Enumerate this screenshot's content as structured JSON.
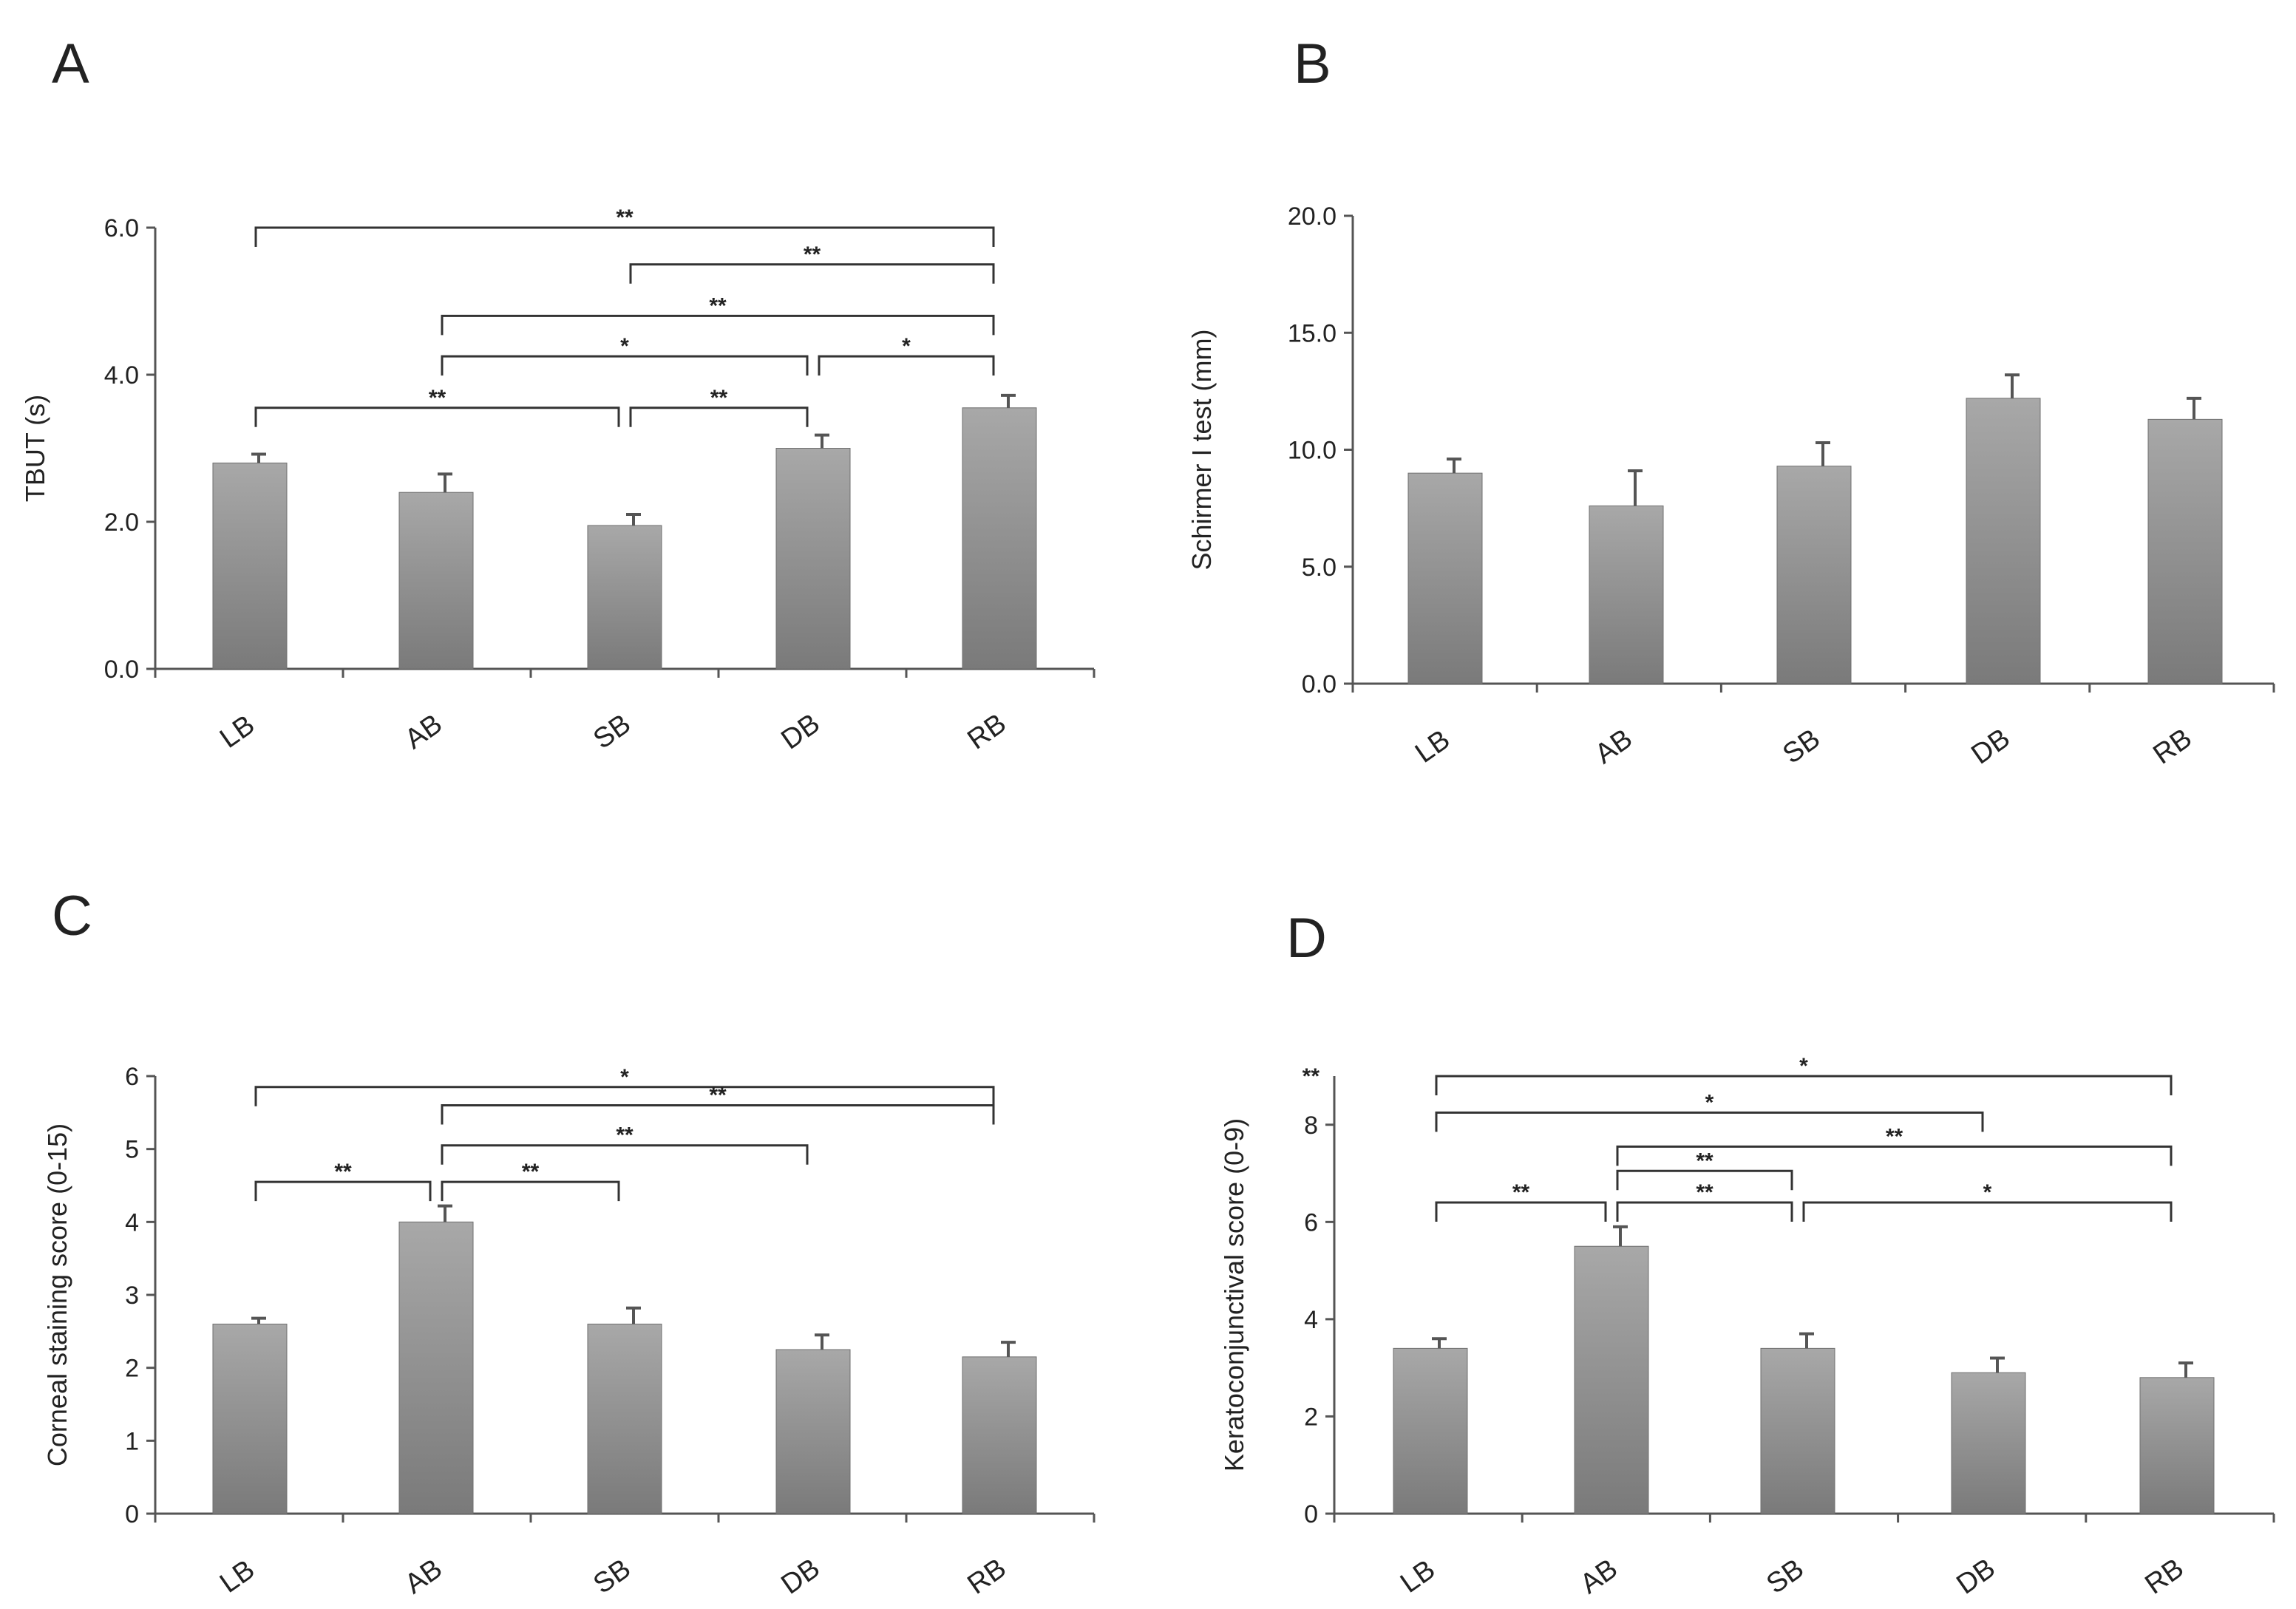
{
  "figure": {
    "bar_color_top": "#a8a8a8",
    "bar_color_bottom": "#7a7a7a",
    "bracket_color": "#333333",
    "axis_color": "#555555"
  },
  "chart_data": [
    {
      "panel": "A",
      "type": "bar",
      "categories": [
        "LB",
        "AB",
        "SB",
        "DB",
        "RB"
      ],
      "values": [
        2.8,
        2.4,
        1.95,
        3.0,
        3.55
      ],
      "errors": [
        0.12,
        0.25,
        0.15,
        0.18,
        0.17
      ],
      "ylabel": "TBUT (s)",
      "ylim": [
        0,
        6
      ],
      "yticks": [
        0,
        2,
        4,
        6
      ],
      "ytick_labels": [
        "0.0",
        "2.0",
        "4.0",
        "6.0"
      ],
      "significance": [
        {
          "from": "LB",
          "to": "RB",
          "label": "**",
          "level": 6.0
        },
        {
          "from": "SB",
          "to": "RB",
          "label": "**",
          "level": 5.5
        },
        {
          "from": "AB",
          "to": "RB",
          "label": "**",
          "level": 4.8
        },
        {
          "from": "AB",
          "to": "DB",
          "label": "*",
          "level": 4.25
        },
        {
          "from": "DB",
          "to": "RB",
          "label": "*",
          "level": 4.25
        },
        {
          "from": "LB",
          "to": "SB",
          "label": "**",
          "level": 3.55
        },
        {
          "from": "SB",
          "to": "DB",
          "label": "**",
          "level": 3.55
        }
      ]
    },
    {
      "panel": "B",
      "type": "bar",
      "categories": [
        "LB",
        "AB",
        "SB",
        "DB",
        "RB"
      ],
      "values": [
        9.0,
        7.6,
        9.3,
        12.2,
        11.3
      ],
      "errors": [
        0.6,
        1.5,
        1.0,
        1.0,
        0.9
      ],
      "ylabel": "Schirmer I test (mm)",
      "ylim": [
        0,
        20
      ],
      "yticks": [
        0,
        5,
        10,
        15,
        20
      ],
      "ytick_labels": [
        "0.0",
        "5.0",
        "10.0",
        "15.0",
        "20.0"
      ],
      "significance": []
    },
    {
      "panel": "C",
      "type": "bar",
      "categories": [
        "LB",
        "AB",
        "SB",
        "DB",
        "RB"
      ],
      "values": [
        2.6,
        4.0,
        2.6,
        2.25,
        2.15
      ],
      "errors": [
        0.08,
        0.22,
        0.22,
        0.2,
        0.2
      ],
      "ylabel": "Corneal staining score (0-15)",
      "ylim": [
        0,
        6
      ],
      "yticks": [
        0,
        1,
        2,
        3,
        4,
        5,
        6
      ],
      "ytick_labels": [
        "0",
        "1",
        "2",
        "3",
        "4",
        "5",
        "6"
      ],
      "significance": [
        {
          "from": "LB",
          "to": "RB",
          "label": "*",
          "level": 5.85
        },
        {
          "from": "AB",
          "to": "RB",
          "label": "**",
          "level": 5.6
        },
        {
          "from": "AB",
          "to": "DB",
          "label": "**",
          "level": 5.05
        },
        {
          "from": "LB",
          "to": "AB",
          "label": "**",
          "level": 4.55
        },
        {
          "from": "AB",
          "to": "SB",
          "label": "**",
          "level": 4.55
        }
      ]
    },
    {
      "panel": "D",
      "type": "bar",
      "categories": [
        "LB",
        "AB",
        "SB",
        "DB",
        "RB"
      ],
      "values": [
        3.4,
        5.5,
        3.4,
        2.9,
        2.8
      ],
      "errors": [
        0.2,
        0.4,
        0.3,
        0.3,
        0.3
      ],
      "ylabel": "Keratoconjunctival score (0-9)",
      "ylim": [
        0,
        9
      ],
      "yticks": [
        0,
        2,
        4,
        6,
        8
      ],
      "ytick_labels": [
        "0",
        "2",
        "4",
        "6",
        "8"
      ],
      "corner_annotation": "**",
      "significance": [
        {
          "from": "LB",
          "to": "RB",
          "label": "*",
          "level": 9.0
        },
        {
          "from": "LB",
          "to": "DB",
          "label": "*",
          "level": 8.25
        },
        {
          "from": "AB",
          "to": "RB",
          "label": "**",
          "level": 7.55
        },
        {
          "from": "AB",
          "to": "SB",
          "label": "**",
          "level": 7.05
        },
        {
          "from": "LB",
          "to": "AB",
          "label": "**",
          "level": 6.4
        },
        {
          "from": "AB",
          "to": "SB",
          "label": "**",
          "level": 6.4
        },
        {
          "from": "SB",
          "to": "RB",
          "label": "*",
          "level": 6.4
        }
      ]
    }
  ]
}
